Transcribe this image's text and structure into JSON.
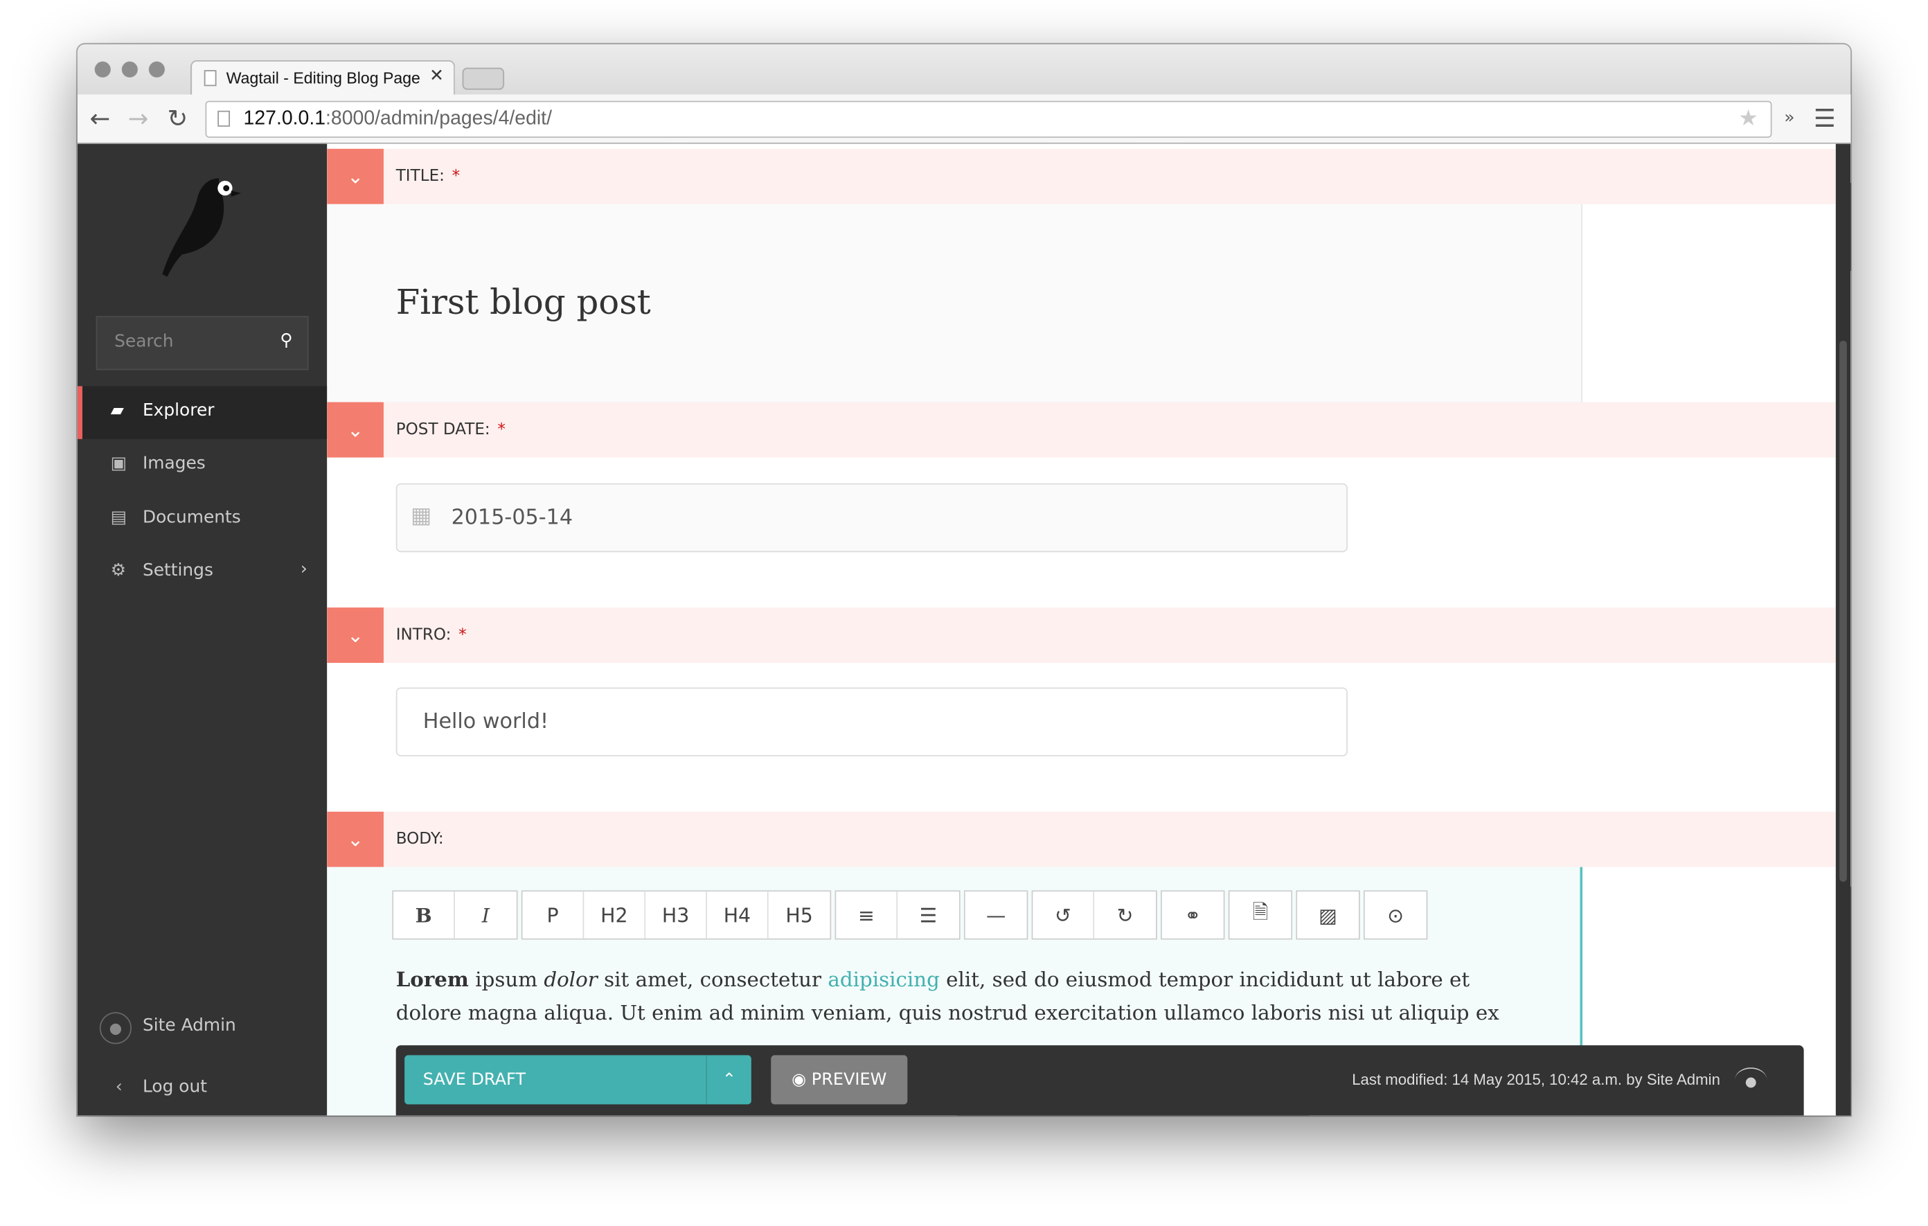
{
  "browser": {
    "tab_title": "Wagtail - Editing Blog Page",
    "url_host": "127.0.0.1",
    "url_path": ":8000/admin/pages/4/edit/"
  },
  "sidebar": {
    "search_placeholder": "Search",
    "items": [
      {
        "label": "Explorer",
        "icon": "folder-open-icon"
      },
      {
        "label": "Images",
        "icon": "image-icon"
      },
      {
        "label": "Documents",
        "icon": "document-icon"
      },
      {
        "label": "Settings",
        "icon": "cogs-icon"
      }
    ],
    "user": "Site Admin",
    "logout": "Log out"
  },
  "fields": {
    "title": {
      "label": "TITLE:",
      "required": "*",
      "value": "First blog post"
    },
    "post_date": {
      "label": "POST DATE:",
      "required": "*",
      "value": "2015-05-14"
    },
    "intro": {
      "label": "INTRO:",
      "required": "*",
      "value": "Hello world!"
    },
    "body": {
      "label": "BODY:",
      "toolbar": [
        "B",
        "I",
        "P",
        "H2",
        "H3",
        "H4",
        "H5",
        "ol",
        "ul",
        "—",
        "undo",
        "redo",
        "link",
        "document",
        "image",
        "embed"
      ],
      "p_bold": "Lorem",
      "p1": " ipsum ",
      "p_italic": "dolor",
      "p2": " sit amet, consectetur ",
      "p_link": "adipisicing",
      "p3": " elit, sed do eiusmod  tempor incididunt ut labore et",
      "line2": "dolore magna aliqua. Ut enim ad minim veniam,  quis nostrud exercitation ullamco laboris nisi ut aliquip ex"
    }
  },
  "footer": {
    "save_draft": "SAVE DRAFT",
    "preview": "PREVIEW",
    "last_modified": "Last modified: 14 May 2015, 10:42 a.m. by Site Admin"
  },
  "colors": {
    "accent": "#43b1b0",
    "header_bg": "#fdf0ef",
    "toggle": "#f37d6e",
    "sidebar": "#333333"
  }
}
